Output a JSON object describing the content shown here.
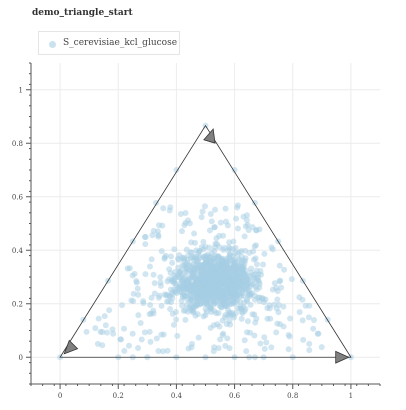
{
  "chart_data": {
    "type": "scatter",
    "title": "demo_triangle_start",
    "legend": {
      "label": "S_cerevisiae_kcl_glucose",
      "color": "#a6cee3",
      "position": "top-left"
    },
    "xlim": [
      -0.1,
      1.1
    ],
    "ylim": [
      -0.1,
      1.1
    ],
    "x_ticks": [
      0,
      0.2,
      0.4,
      0.6,
      0.8,
      1
    ],
    "x_tick_labels": [
      "0",
      "0.2",
      "0.4",
      "0.6",
      "0.8",
      "1"
    ],
    "y_ticks": [
      0,
      0.2,
      0.4,
      0.6,
      0.8,
      1
    ],
    "y_tick_labels": [
      "0",
      "0.2",
      "0.4",
      "0.6",
      "0.8",
      "1"
    ],
    "grid": true,
    "triangle_vertices": [
      [
        0,
        0
      ],
      [
        1,
        0
      ],
      [
        0.5,
        0.866
      ]
    ],
    "arrow_markers": [
      [
        0.03,
        0.03
      ],
      [
        0.97,
        0.0
      ],
      [
        0.52,
        0.83
      ]
    ],
    "cluster": {
      "center": [
        0.53,
        0.28
      ],
      "spread": [
        0.065,
        0.055
      ],
      "count": 1100
    },
    "scatter_background": {
      "count": 260
    },
    "edge_points": [
      [
        0,
        0
      ],
      [
        0.2,
        0
      ],
      [
        0.25,
        0
      ],
      [
        0.3,
        0
      ],
      [
        0.4,
        0
      ],
      [
        0.5,
        0
      ],
      [
        0.6,
        0
      ],
      [
        0.65,
        0
      ],
      [
        0.67,
        0
      ],
      [
        0.7,
        0
      ],
      [
        0.8,
        0
      ],
      [
        1,
        0
      ],
      [
        0.5,
        0.866
      ],
      [
        0.33,
        0.577
      ],
      [
        0.25,
        0.433
      ],
      [
        0.67,
        0.577
      ],
      [
        0.75,
        0.433
      ],
      [
        0.165,
        0.286
      ],
      [
        0.835,
        0.286
      ],
      [
        0.08,
        0.14
      ],
      [
        0.92,
        0.14
      ],
      [
        0.13,
        0.05
      ],
      [
        0.6,
        0.7
      ],
      [
        0.4,
        0.7
      ]
    ]
  }
}
